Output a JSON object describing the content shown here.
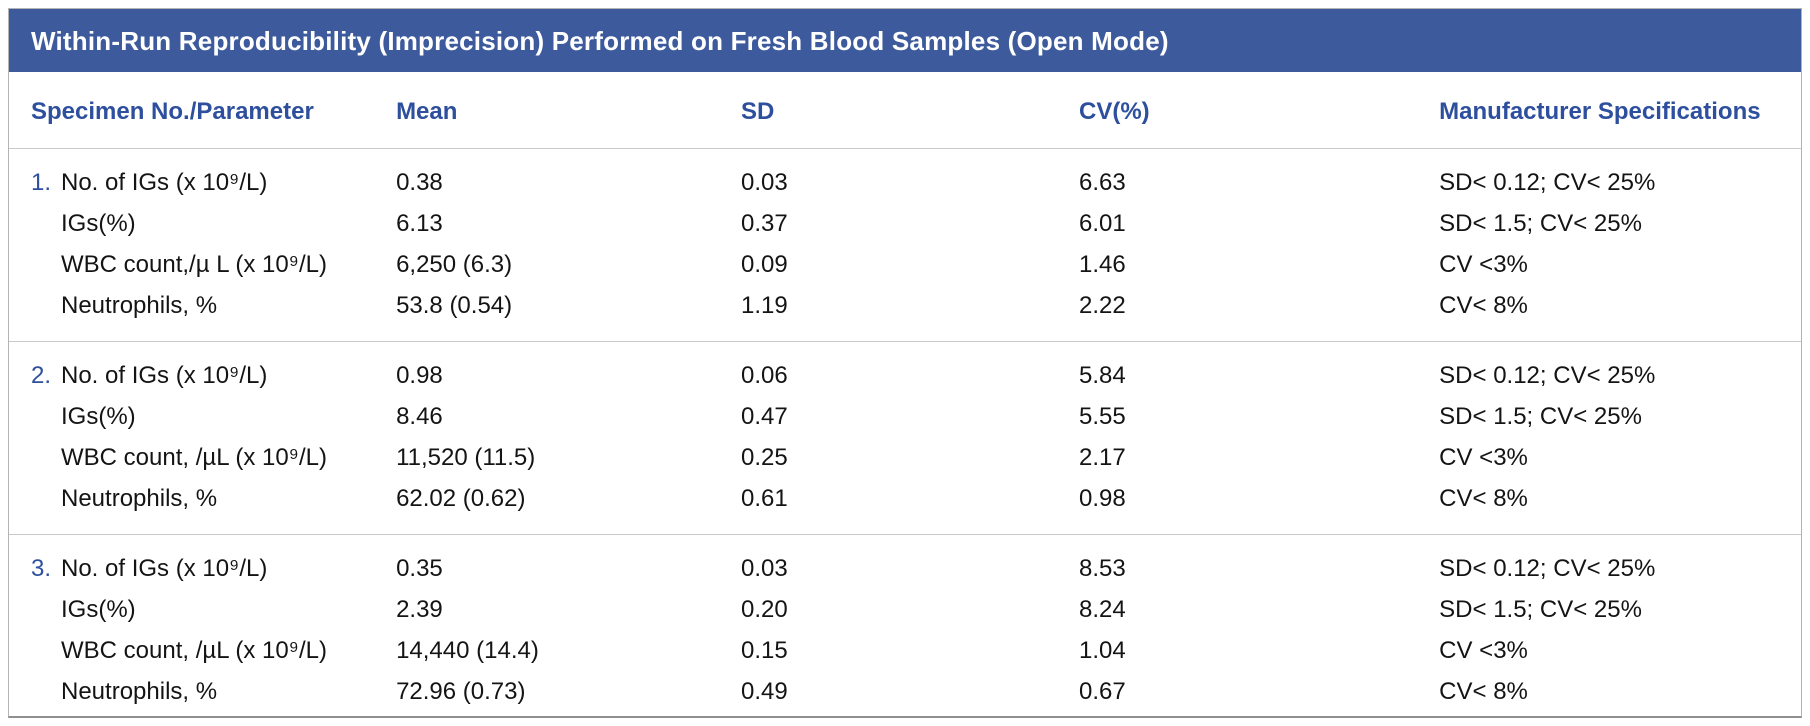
{
  "table": {
    "title": "Within-Run Reproducibility (Imprecision) Performed on Fresh Blood Samples (Open Mode)",
    "columns": [
      "Specimen No./Parameter",
      "Mean",
      "SD",
      "CV(%)",
      "Manufacturer Specifications"
    ],
    "groups": [
      {
        "number": "1.",
        "rows": [
          {
            "parameter": "No. of IGs (x 10⁹/L)",
            "mean": "0.38",
            "sd": "0.03",
            "cv": "6.63",
            "spec": "SD< 0.12; CV< 25%"
          },
          {
            "parameter": "IGs(%)",
            "mean": "6.13",
            "sd": "0.37",
            "cv": "6.01",
            "spec": "SD< 1.5; CV< 25%"
          },
          {
            "parameter": "WBC count,/µ L (x 10⁹/L)",
            "mean": "6,250 (6.3)",
            "sd": "0.09",
            "cv": "1.46",
            "spec": "CV <3%"
          },
          {
            "parameter": "Neutrophils, %",
            "mean": "53.8 (0.54)",
            "sd": "1.19",
            "cv": "2.22",
            "spec": "CV< 8%"
          }
        ]
      },
      {
        "number": "2.",
        "rows": [
          {
            "parameter": "No. of IGs (x 10⁹/L)",
            "mean": "0.98",
            "sd": "0.06",
            "cv": "5.84",
            "spec": "SD< 0.12; CV< 25%"
          },
          {
            "parameter": "IGs(%)",
            "mean": "8.46",
            "sd": "0.47",
            "cv": "5.55",
            "spec": "SD< 1.5; CV< 25%"
          },
          {
            "parameter": "WBC count, /µL (x 10⁹/L)",
            "mean": "11,520 (11.5)",
            "sd": "0.25",
            "cv": "2.17",
            "spec": "CV <3%"
          },
          {
            "parameter": "Neutrophils, %",
            "mean": "62.02 (0.62)",
            "sd": "0.61",
            "cv": "0.98",
            "spec": "CV< 8%"
          }
        ]
      },
      {
        "number": "3.",
        "rows": [
          {
            "parameter": "No. of IGs (x 10⁹/L)",
            "mean": "0.35",
            "sd": "0.03",
            "cv": "8.53",
            "spec": "SD< 0.12; CV< 25%"
          },
          {
            "parameter": "IGs(%)",
            "mean": "2.39",
            "sd": "0.20",
            "cv": "8.24",
            "spec": "SD< 1.5; CV< 25%"
          },
          {
            "parameter": "WBC count, /µL (x 10⁹/L)",
            "mean": "14,440 (14.4)",
            "sd": "0.15",
            "cv": "1.04",
            "spec": "CV <3%"
          },
          {
            "parameter": "Neutrophils, %",
            "mean": "72.96 (0.73)",
            "sd": "0.49",
            "cv": "0.67",
            "spec": "CV< 8%"
          }
        ]
      }
    ],
    "colors": {
      "header_bar": "#3d5b9c",
      "accent_blue": "#2d4f9e",
      "divider": "#c9c9c9"
    }
  }
}
